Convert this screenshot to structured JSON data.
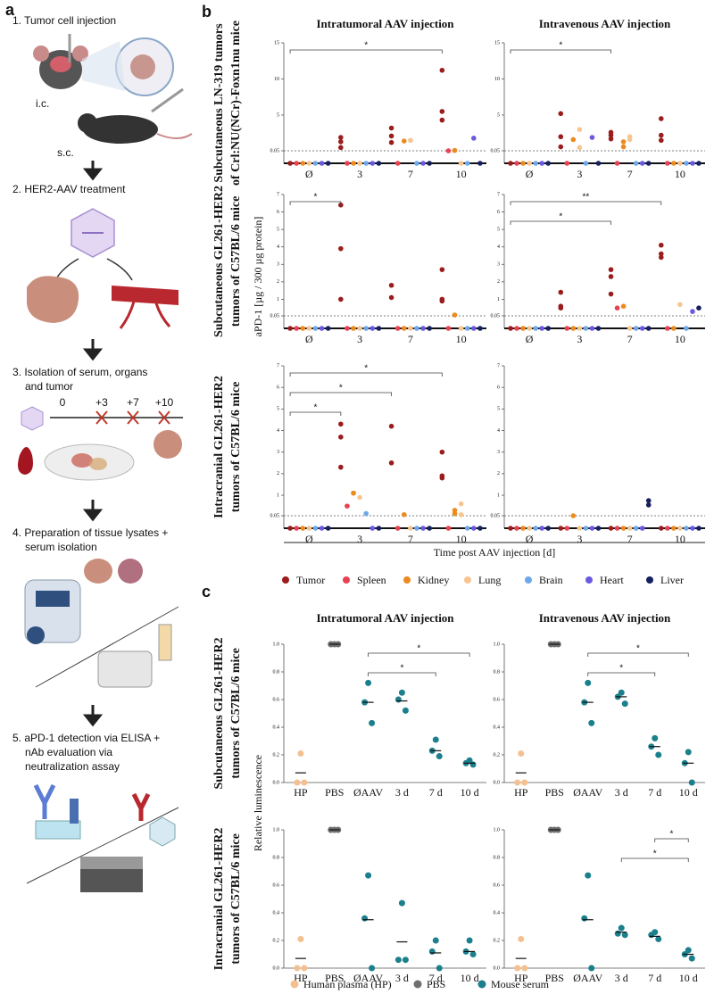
{
  "panel_a": {
    "label": "a",
    "steps": [
      [
        "1. Tumor cell injection"
      ],
      [
        "2. HER2-AAV treatment"
      ],
      [
        "3. Isolation of serum, organs",
        "and tumor"
      ],
      [
        "4. Preparation of tissue lysates +",
        "serum isolation"
      ],
      [
        "5. aPD-1 detection via ELISA +",
        "nAb evaluation via",
        "neutralization assay"
      ]
    ],
    "site_labels": [
      "i.c.",
      "s.c."
    ],
    "timeline": [
      "0",
      "+3",
      "+7",
      "+10"
    ]
  },
  "chart_data": [
    {
      "type": "strip",
      "panel_label": "b",
      "column_titles": [
        "Intratumoral AAV injection",
        "Intravenous AAV injection"
      ],
      "row_titles": [
        [
          "Subcutaneous LN-319 tumors",
          "of Crl:NU(NCr)-Foxn1nu mice"
        ],
        [
          "Subcutaneous GL261-HER2",
          "tumors of C57BL/6 mice"
        ],
        [
          "Intracranial GL261-HER2",
          "tumors of C57BL/6 mice"
        ]
      ],
      "y_label": "aPD-1 [µg / 300 µg protein]",
      "x_label": "Time post AAV injection [d]",
      "categories": [
        "Ø",
        "3",
        "7",
        "10"
      ],
      "break_at": 0.05,
      "series": [
        {
          "name": "Tumor",
          "color": "#9b1c1c"
        },
        {
          "name": "Spleen",
          "color": "#e8414f"
        },
        {
          "name": "Kidney",
          "color": "#ec8a1e"
        },
        {
          "name": "Lung",
          "color": "#f7c58f"
        },
        {
          "name": "Brain",
          "color": "#6fa8e8"
        },
        {
          "name": "Heart",
          "color": "#6a5ae0"
        },
        {
          "name": "Liver",
          "color": "#16205e"
        }
      ],
      "plots": [
        {
          "ylim": [
            0,
            15
          ],
          "yticks": [
            0.05,
            5,
            10,
            15
          ],
          "values": [
            [
              [
                0
              ],
              [
                1.9,
                1.3,
                0.5
              ],
              [
                3.2,
                2.1,
                1.2
              ],
              [
                11.2,
                5.5,
                4.3
              ]
            ],
            [
              [
                0
              ],
              [
                0
              ],
              [
                0
              ],
              [
                0.05
              ]
            ],
            [
              [
                0
              ],
              [
                0
              ],
              [
                1.4
              ],
              [
                0.1
              ]
            ],
            [
              [
                0
              ],
              [
                0
              ],
              [
                1.5
              ],
              [
                0
              ]
            ],
            [
              [
                0
              ],
              [
                0
              ],
              [
                0
              ],
              [
                0
              ]
            ],
            [
              [
                0
              ],
              [
                0
              ],
              [
                0
              ],
              [
                1.8
              ]
            ],
            [
              [
                0
              ],
              [
                0
              ],
              [
                0
              ],
              [
                0
              ]
            ]
          ],
          "brackets": [
            {
              "from": 0,
              "to": 3,
              "label": "*"
            }
          ]
        },
        {
          "ylim": [
            0,
            15
          ],
          "yticks": [
            0.05,
            5,
            10,
            15
          ],
          "values": [
            [
              [
                0
              ],
              [
                5.2,
                2,
                0.6
              ],
              [
                2.6,
                2.2,
                1.7
              ],
              [
                4.5,
                2.2,
                1.5
              ]
            ],
            [
              [
                0
              ],
              [
                0
              ],
              [
                0
              ],
              [
                0
              ]
            ],
            [
              [
                0
              ],
              [
                1.6
              ],
              [
                1.3,
                0.6
              ],
              [
                0
              ]
            ],
            [
              [
                0
              ],
              [
                3,
                0.5
              ],
              [
                2,
                1.6
              ],
              [
                0
              ]
            ],
            [
              [
                0
              ],
              [
                0
              ],
              [
                0
              ],
              [
                0
              ]
            ],
            [
              [
                0
              ],
              [
                1.9
              ],
              [
                0
              ],
              [
                0
              ]
            ],
            [
              [
                0
              ],
              [
                0
              ],
              [
                0
              ],
              [
                0
              ]
            ]
          ],
          "brackets": [
            {
              "from": 0,
              "to": 2,
              "label": "*"
            }
          ]
        },
        {
          "ylim": [
            0,
            7
          ],
          "yticks": [
            0.05,
            1,
            2,
            3,
            4,
            5,
            6,
            7
          ],
          "values": [
            [
              [
                0
              ],
              [
                6.4,
                3.9,
                1
              ],
              [
                1.8,
                1.1
              ],
              [
                2.7,
                1,
                0.9
              ]
            ],
            [
              [
                0
              ],
              [
                0
              ],
              [
                0
              ],
              [
                0
              ]
            ],
            [
              [
                0
              ],
              [
                0
              ],
              [
                0
              ],
              [
                0.1
              ]
            ],
            [
              [
                0
              ],
              [
                0
              ],
              [
                0
              ],
              [
                0
              ]
            ],
            [
              [
                0
              ],
              [
                0
              ],
              [
                0
              ],
              [
                0
              ]
            ],
            [
              [
                0
              ],
              [
                0
              ],
              [
                0
              ],
              [
                0
              ]
            ],
            [
              [
                0
              ],
              [
                0
              ],
              [
                0
              ],
              [
                0
              ]
            ]
          ],
          "brackets": [
            {
              "from": 0,
              "to": 1,
              "label": "*"
            }
          ]
        },
        {
          "ylim": [
            0,
            7
          ],
          "yticks": [
            0.05,
            1,
            2,
            3,
            4,
            5,
            6,
            7
          ],
          "values": [
            [
              [
                0
              ],
              [
                1.4,
                0.6,
                0.5
              ],
              [
                2.7,
                2.3,
                1.3
              ],
              [
                4.1,
                3.6,
                3.4
              ]
            ],
            [
              [
                0
              ],
              [
                0
              ],
              [
                0.5
              ],
              [
                0
              ]
            ],
            [
              [
                0
              ],
              [
                0
              ],
              [
                0.6
              ],
              [
                0
              ]
            ],
            [
              [
                0
              ],
              [
                0
              ],
              [
                0
              ],
              [
                0.7
              ]
            ],
            [
              [
                0
              ],
              [
                0
              ],
              [
                0
              ],
              [
                0
              ]
            ],
            [
              [
                0
              ],
              [
                0
              ],
              [
                0
              ],
              [
                0.3
              ]
            ],
            [
              [
                0
              ],
              [
                0
              ],
              [
                0
              ],
              [
                0.5
              ]
            ]
          ],
          "brackets": [
            {
              "from": 0,
              "to": 2,
              "label": "*"
            },
            {
              "from": 0,
              "to": 3,
              "label": "**"
            }
          ]
        },
        {
          "ylim": [
            0,
            7
          ],
          "yticks": [
            0.05,
            1,
            2,
            3,
            4,
            5,
            6,
            7
          ],
          "values": [
            [
              [
                0
              ],
              [
                4.3,
                3.7,
                2.3
              ],
              [
                4.2,
                2.5
              ],
              [
                3,
                1.9,
                1.8
              ]
            ],
            [
              [
                0
              ],
              [
                0.5
              ],
              [
                0
              ],
              [
                0
              ]
            ],
            [
              [
                0
              ],
              [
                1.1,
                1.1
              ],
              [
                0.1
              ],
              [
                0.3,
                0.15
              ]
            ],
            [
              [
                0
              ],
              [
                0.9
              ],
              [
                0
              ],
              [
                0.6,
                0.1
              ]
            ],
            [
              [
                0
              ],
              [
                0.15
              ],
              [
                0
              ],
              [
                0
              ]
            ],
            [
              [
                0
              ],
              [
                0
              ],
              [
                0
              ],
              [
                0
              ]
            ],
            [
              [
                0
              ],
              [
                0
              ],
              [
                0
              ],
              [
                0
              ]
            ]
          ],
          "brackets": [
            {
              "from": 0,
              "to": 1,
              "label": "*"
            },
            {
              "from": 0,
              "to": 2,
              "label": "*"
            },
            {
              "from": 0,
              "to": 3,
              "label": "*"
            }
          ]
        },
        {
          "ylim": [
            0,
            7
          ],
          "yticks": [
            0.05,
            1,
            2,
            3,
            4,
            5,
            6,
            7
          ],
          "values": [
            [
              [
                0
              ],
              [
                0
              ],
              [
                0
              ],
              [
                0
              ]
            ],
            [
              [
                0
              ],
              [
                0
              ],
              [
                0
              ],
              [
                0
              ]
            ],
            [
              [
                0
              ],
              [
                0.05
              ],
              [
                0
              ],
              [
                0
              ]
            ],
            [
              [
                0
              ],
              [
                0
              ],
              [
                0
              ],
              [
                0
              ]
            ],
            [
              [
                0
              ],
              [
                0
              ],
              [
                0
              ],
              [
                0
              ]
            ],
            [
              [
                0
              ],
              [
                0
              ],
              [
                0
              ],
              [
                0
              ]
            ],
            [
              [
                0
              ],
              [
                0
              ],
              [
                0.75,
                0.55
              ],
              [
                0
              ]
            ]
          ],
          "brackets": []
        }
      ]
    },
    {
      "type": "dot",
      "panel_label": "c",
      "column_titles": [
        "Intratumoral AAV injection",
        "Intravenous AAV injection"
      ],
      "row_titles": [
        [
          "Subcutaneous GL261-HER2",
          "tumors of C57BL/6 mice"
        ],
        [
          "Intracranial GL261-HER2",
          "tumors of C57BL/6 mice"
        ]
      ],
      "y_label": "Relative luminescence",
      "categories": [
        "HP",
        "PBS",
        "ØAAV",
        "3 d",
        "7 d",
        "10 d"
      ],
      "category_series": [
        0,
        1,
        2,
        2,
        2,
        2
      ],
      "series": [
        {
          "name": "Human plasma (HP)",
          "color": "#f5c08f"
        },
        {
          "name": "PBS",
          "color": "#6e6e6e"
        },
        {
          "name": "Mouse serum",
          "color": "#1b7f8c"
        }
      ],
      "ylim": [
        0,
        1
      ],
      "yticks": [
        {
          "value": 0,
          "label": "0.0"
        },
        0.2,
        0.4,
        0.6,
        0.8,
        {
          "value": 1,
          "label": "1.0"
        }
      ],
      "plots": [
        {
          "values": [
            [
              0.21,
              0,
              0
            ],
            [
              1,
              1,
              1
            ],
            [
              0.72,
              0.58,
              0.43
            ],
            [
              0.65,
              0.6,
              0.52
            ],
            [
              0.31,
              0.23,
              0.19
            ],
            [
              0.16,
              0.14,
              0.13
            ]
          ],
          "means": [
            0.07,
            1,
            0.58,
            0.59,
            0.23,
            0.14
          ],
          "brackets": [
            {
              "from": 2,
              "to": 4,
              "label": "*"
            },
            {
              "from": 2,
              "to": 5,
              "label": "*"
            }
          ]
        },
        {
          "values": [
            [
              0.21,
              0,
              0
            ],
            [
              1,
              1,
              1
            ],
            [
              0.72,
              0.58,
              0.43
            ],
            [
              0.65,
              0.62,
              0.57
            ],
            [
              0.32,
              0.26,
              0.2
            ],
            [
              0.22,
              0.14,
              0
            ]
          ],
          "means": [
            0.07,
            1,
            0.58,
            0.62,
            0.26,
            0.14
          ],
          "brackets": [
            {
              "from": 2,
              "to": 4,
              "label": "*"
            },
            {
              "from": 2,
              "to": 5,
              "label": "*"
            }
          ]
        },
        {
          "values": [
            [
              0.21,
              0,
              0
            ],
            [
              1,
              1,
              1
            ],
            [
              0.67,
              0.36,
              0
            ],
            [
              0.47,
              0.06,
              0.06
            ],
            [
              0.2,
              0.12,
              0
            ],
            [
              0.2,
              0.12,
              0.1
            ]
          ],
          "means": [
            0.07,
            1,
            0.35,
            0.19,
            0.11,
            0.12
          ],
          "brackets": []
        },
        {
          "values": [
            [
              0.21,
              0,
              0
            ],
            [
              1,
              1,
              1
            ],
            [
              0.67,
              0.36,
              0
            ],
            [
              0.29,
              0.25,
              0.24
            ],
            [
              0.26,
              0.24,
              0.21
            ],
            [
              0.13,
              0.1,
              0.07
            ]
          ],
          "means": [
            0.07,
            1,
            0.35,
            0.26,
            0.23,
            0.1
          ],
          "brackets": [
            {
              "from": 3,
              "to": 5,
              "label": "*"
            },
            {
              "from": 4,
              "to": 5,
              "label": "*"
            }
          ]
        }
      ]
    }
  ]
}
